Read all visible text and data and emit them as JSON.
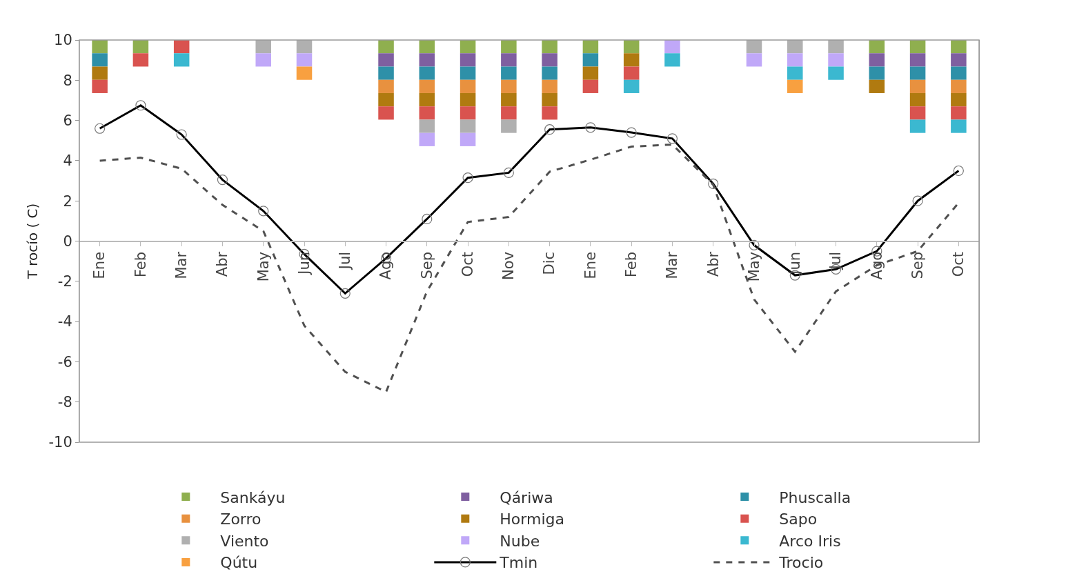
{
  "chart_data": {
    "type": "bar",
    "ylabel": "T rocío ( C)",
    "categories": [
      "Ene",
      "Feb",
      "Mar",
      "Abr",
      "May",
      "Jun",
      "Jul",
      "Ago",
      "Sep",
      "Oct",
      "Nov",
      "Dic",
      "Ene",
      "Feb",
      "Mar",
      "Abr",
      "May",
      "Jun",
      "Jul",
      "Ago",
      "Sep",
      "Oct"
    ],
    "ylim": [
      -10,
      10
    ],
    "yticks": [
      -10,
      -8,
      -6,
      -4,
      -2,
      0,
      2,
      4,
      6,
      8,
      10
    ],
    "grid": false,
    "legend": "bottom",
    "series": [
      {
        "name": "Sankáyu",
        "color": "#8faf4f",
        "values": [
          -0.66,
          -0.66,
          null,
          null,
          null,
          null,
          null,
          -0.66,
          -0.66,
          -0.66,
          -0.66,
          -0.66,
          -0.66,
          -0.66,
          null,
          null,
          null,
          null,
          null,
          -0.66,
          -0.66,
          -0.66
        ],
        "base": [
          10,
          10,
          null,
          null,
          null,
          null,
          null,
          10,
          10,
          10,
          10,
          10,
          10,
          10,
          null,
          null,
          null,
          null,
          null,
          10,
          10,
          10
        ]
      },
      {
        "name": "Qáriwa",
        "color": "#7f5fa0",
        "values": [
          null,
          null,
          null,
          null,
          null,
          null,
          null,
          -0.66,
          -0.66,
          -0.66,
          -0.66,
          -0.66,
          null,
          null,
          null,
          null,
          null,
          null,
          null,
          -0.66,
          -0.66,
          -0.66
        ],
        "base": [
          null,
          null,
          null,
          null,
          null,
          null,
          null,
          9.34,
          9.34,
          9.34,
          9.34,
          9.34,
          null,
          null,
          null,
          null,
          null,
          null,
          null,
          9.34,
          9.34,
          9.34
        ]
      },
      {
        "name": "Phuscalla",
        "color": "#2e90a8",
        "values": [
          -0.66,
          null,
          null,
          null,
          null,
          null,
          null,
          -0.66,
          -0.66,
          -0.66,
          -0.66,
          -0.66,
          -0.66,
          null,
          null,
          null,
          null,
          null,
          null,
          -0.66,
          -0.66,
          -0.66
        ],
        "base": [
          9.34,
          null,
          null,
          null,
          null,
          null,
          null,
          8.68,
          8.68,
          8.68,
          8.68,
          8.68,
          9.34,
          null,
          null,
          null,
          null,
          null,
          null,
          8.68,
          8.68,
          8.68
        ]
      },
      {
        "name": "Zorro",
        "color": "#e8913f",
        "values": [
          null,
          null,
          null,
          null,
          null,
          null,
          null,
          -0.66,
          -0.66,
          -0.66,
          -0.66,
          -0.66,
          null,
          null,
          null,
          null,
          null,
          null,
          null,
          null,
          -0.66,
          -0.66
        ],
        "base": [
          null,
          null,
          null,
          null,
          null,
          null,
          null,
          8.02,
          8.02,
          8.02,
          8.02,
          8.02,
          null,
          null,
          null,
          null,
          null,
          null,
          null,
          null,
          8.02,
          8.02
        ]
      },
      {
        "name": "Hormiga",
        "color": "#b07a10",
        "values": [
          -0.66,
          null,
          null,
          null,
          null,
          null,
          null,
          -0.66,
          -0.66,
          -0.66,
          -0.66,
          -0.66,
          -0.66,
          -0.66,
          null,
          null,
          null,
          null,
          null,
          -0.66,
          -0.66,
          -0.66
        ],
        "base": [
          8.68,
          null,
          null,
          null,
          null,
          null,
          null,
          7.36,
          7.36,
          7.36,
          7.36,
          7.36,
          8.68,
          9.34,
          null,
          null,
          null,
          null,
          null,
          8.02,
          7.36,
          7.36
        ]
      },
      {
        "name": "Sapo",
        "color": "#d9534f",
        "values": [
          -0.66,
          -0.66,
          -0.66,
          null,
          null,
          null,
          null,
          -0.66,
          -0.66,
          -0.66,
          -0.66,
          -0.66,
          -0.66,
          -0.66,
          null,
          null,
          null,
          null,
          null,
          null,
          -0.66,
          -0.66
        ],
        "base": [
          8.02,
          9.34,
          10,
          null,
          null,
          null,
          null,
          6.7,
          6.7,
          6.7,
          6.7,
          6.7,
          8.02,
          8.68,
          null,
          null,
          null,
          null,
          null,
          null,
          6.7,
          6.7
        ]
      },
      {
        "name": "Viento",
        "color": "#b0b0b0",
        "values": [
          null,
          null,
          null,
          null,
          -0.66,
          -0.66,
          null,
          null,
          -0.66,
          -0.66,
          -0.66,
          null,
          null,
          null,
          null,
          null,
          -0.66,
          -0.66,
          -0.66,
          null,
          null,
          null
        ],
        "base": [
          null,
          null,
          null,
          null,
          10,
          10,
          null,
          null,
          6.04,
          6.04,
          6.04,
          null,
          null,
          null,
          null,
          null,
          10,
          10,
          10,
          null,
          null,
          null
        ]
      },
      {
        "name": "Nube",
        "color": "#c0a8f8",
        "values": [
          null,
          null,
          null,
          null,
          -0.66,
          -0.66,
          null,
          null,
          -0.66,
          -0.66,
          null,
          null,
          null,
          null,
          -0.66,
          null,
          -0.66,
          -0.66,
          -0.66,
          null,
          null,
          null
        ],
        "base": [
          null,
          null,
          null,
          null,
          9.34,
          9.34,
          null,
          null,
          5.38,
          5.38,
          null,
          null,
          null,
          null,
          10,
          null,
          9.34,
          9.34,
          9.34,
          null,
          null,
          null
        ]
      },
      {
        "name": "Arco Iris",
        "color": "#3bb8d0",
        "values": [
          null,
          null,
          -0.66,
          null,
          null,
          null,
          null,
          null,
          null,
          null,
          null,
          null,
          null,
          -0.66,
          -0.66,
          null,
          null,
          -0.66,
          -0.66,
          null,
          -0.66,
          -0.66
        ],
        "base": [
          null,
          null,
          9.34,
          null,
          null,
          null,
          null,
          null,
          null,
          null,
          null,
          null,
          null,
          8.02,
          9.34,
          null,
          null,
          8.68,
          8.68,
          null,
          6.04,
          6.04
        ]
      },
      {
        "name": "Qútu",
        "color": "#f8a040",
        "values": [
          null,
          null,
          null,
          null,
          null,
          -0.66,
          null,
          null,
          null,
          null,
          null,
          null,
          null,
          null,
          null,
          null,
          null,
          -0.66,
          null,
          null,
          null,
          null
        ],
        "base": [
          null,
          null,
          null,
          null,
          null,
          8.68,
          null,
          null,
          null,
          null,
          null,
          null,
          null,
          null,
          null,
          null,
          null,
          8.02,
          null,
          null,
          null,
          null
        ]
      },
      {
        "name": "Tmin",
        "type": "line",
        "color": "#000000",
        "marker": "circle",
        "line_style": "solid",
        "values": [
          5.6,
          6.75,
          5.3,
          3.05,
          1.5,
          -0.65,
          -2.6,
          -0.85,
          1.1,
          3.15,
          3.4,
          5.55,
          5.65,
          5.4,
          5.1,
          2.85,
          -0.2,
          -1.7,
          -1.4,
          -0.5,
          2.0,
          3.5
        ]
      },
      {
        "name": "Trocio",
        "type": "line",
        "color": "#505050",
        "marker": "none",
        "line_style": "dashed",
        "values": [
          4.0,
          4.15,
          3.6,
          1.8,
          0.5,
          -4.2,
          -6.5,
          -7.5,
          -2.5,
          0.95,
          1.2,
          3.45,
          4.05,
          4.7,
          4.8,
          2.8,
          -2.9,
          -5.5,
          -2.5,
          -1.2,
          -0.5,
          1.9
        ]
      }
    ]
  }
}
